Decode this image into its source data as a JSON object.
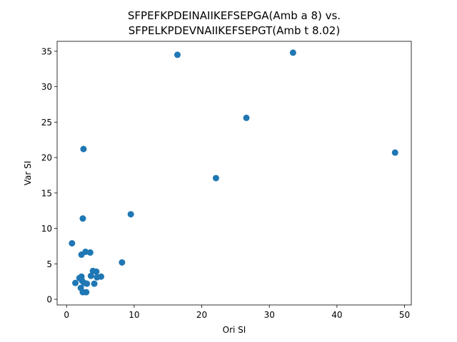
{
  "chart_data": {
    "type": "scatter",
    "title_line1": "SFPEFKPDEINAIIKEFSEPGA(Amb a 8) vs.",
    "title_line2": "SFPELKPDEVNAIIKEFSEPGT(Amb t 8.02)",
    "xlabel": "Ori SI",
    "ylabel": "Var SI",
    "xlim": [
      -1.4,
      51.0
    ],
    "ylim": [
      -0.8,
      36.4
    ],
    "xticks": [
      0,
      10,
      20,
      30,
      40,
      50
    ],
    "yticks": [
      0,
      5,
      10,
      15,
      20,
      25,
      30,
      35
    ],
    "grid": false,
    "marker_color": "#1f77b4",
    "points": [
      {
        "x": 16.4,
        "y": 34.5
      },
      {
        "x": 33.5,
        "y": 34.8
      },
      {
        "x": 26.6,
        "y": 25.6
      },
      {
        "x": 48.6,
        "y": 20.7
      },
      {
        "x": 2.5,
        "y": 21.2
      },
      {
        "x": 22.1,
        "y": 17.1
      },
      {
        "x": 9.5,
        "y": 12.0
      },
      {
        "x": 2.4,
        "y": 11.4
      },
      {
        "x": 0.8,
        "y": 7.9
      },
      {
        "x": 2.8,
        "y": 6.7
      },
      {
        "x": 3.5,
        "y": 6.6
      },
      {
        "x": 2.2,
        "y": 6.3
      },
      {
        "x": 8.2,
        "y": 5.2
      },
      {
        "x": 3.9,
        "y": 4.0
      },
      {
        "x": 4.4,
        "y": 3.9
      },
      {
        "x": 3.6,
        "y": 3.3
      },
      {
        "x": 4.5,
        "y": 3.1
      },
      {
        "x": 5.1,
        "y": 3.2
      },
      {
        "x": 2.2,
        "y": 3.2
      },
      {
        "x": 1.9,
        "y": 3.0
      },
      {
        "x": 2.3,
        "y": 2.6
      },
      {
        "x": 1.3,
        "y": 2.3
      },
      {
        "x": 2.6,
        "y": 2.3
      },
      {
        "x": 3.0,
        "y": 2.2
      },
      {
        "x": 4.1,
        "y": 2.2
      },
      {
        "x": 2.1,
        "y": 1.6
      },
      {
        "x": 2.4,
        "y": 1.0
      },
      {
        "x": 2.9,
        "y": 1.0
      }
    ]
  }
}
